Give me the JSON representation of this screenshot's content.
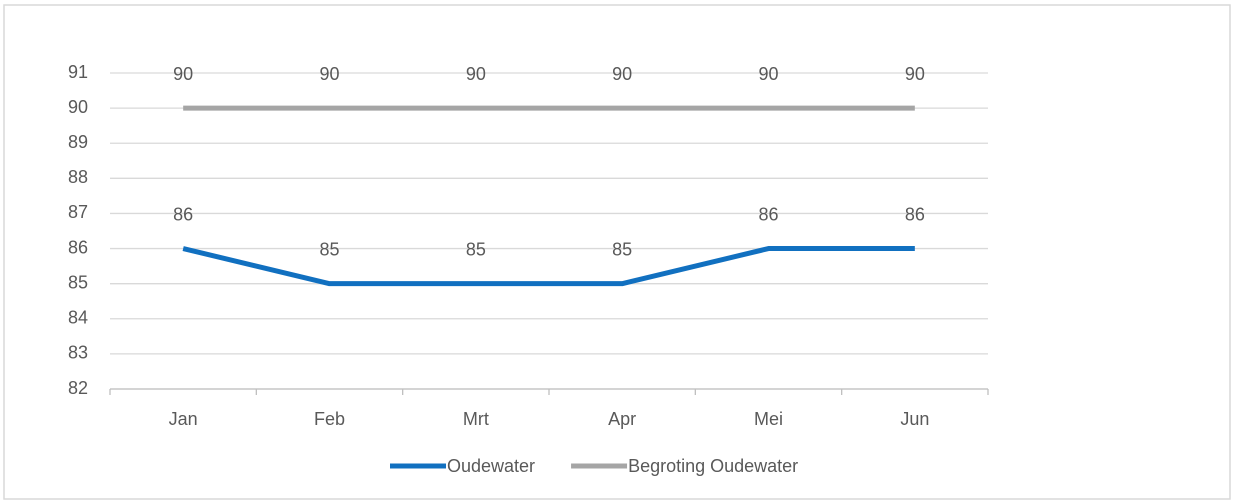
{
  "chart_data": {
    "type": "line",
    "categories": [
      "Jan",
      "Feb",
      "Mrt",
      "Apr",
      "Mei",
      "Jun"
    ],
    "series": [
      {
        "name": "Oudewater",
        "color": "#1170c0",
        "values": [
          86,
          85,
          85,
          85,
          86,
          86
        ]
      },
      {
        "name": "Begroting Oudewater",
        "color": "#a5a5a5",
        "values": [
          90,
          90,
          90,
          90,
          90,
          90
        ]
      }
    ],
    "ylim": [
      82,
      91
    ],
    "yticks": [
      82,
      83,
      84,
      85,
      86,
      87,
      88,
      89,
      90,
      91
    ],
    "grid": true,
    "data_labels": true,
    "legend": "bottom"
  }
}
